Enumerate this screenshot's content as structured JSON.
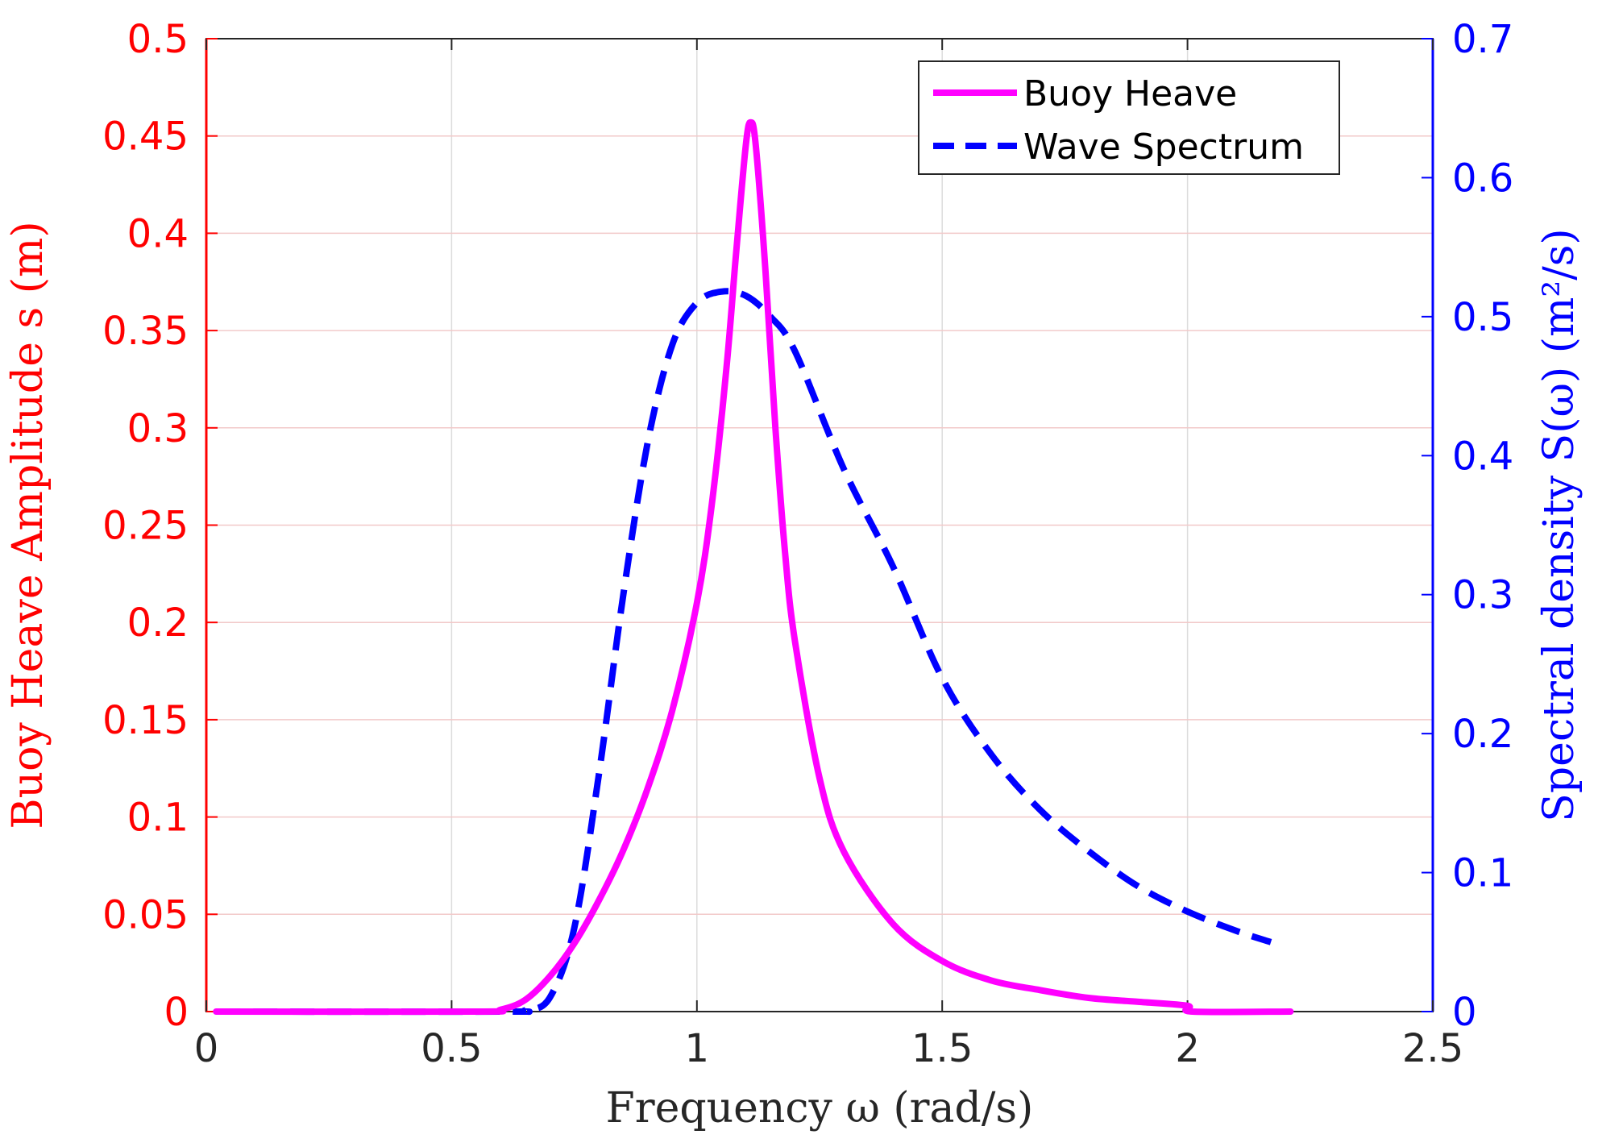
{
  "chart_data": {
    "type": "line",
    "title": "",
    "xlabel": "Frequency ω (rad/s)",
    "ylabel_left": "Buoy Heave Amplitude s (m)",
    "ylabel_right": "Spectral density S(ω) (m²/s)",
    "xlim": [
      0,
      2.5
    ],
    "ylim_left": [
      0,
      0.5
    ],
    "ylim_right": [
      0,
      0.7
    ],
    "grid": true,
    "legend_position": "top-right",
    "x_ticks": [
      "0",
      "0.5",
      "1",
      "1.5",
      "2",
      "2.5"
    ],
    "x_tick_values": [
      0,
      0.5,
      1,
      1.5,
      2,
      2.5
    ],
    "y_left_ticks": [
      "0",
      "0.05",
      "0.1",
      "0.15",
      "0.2",
      "0.25",
      "0.3",
      "0.35",
      "0.4",
      "0.45",
      "0.5"
    ],
    "y_left_tick_values": [
      0,
      0.05,
      0.1,
      0.15,
      0.2,
      0.25,
      0.3,
      0.35,
      0.4,
      0.45,
      0.5
    ],
    "y_right_ticks": [
      "0",
      "0.1",
      "0.2",
      "0.3",
      "0.4",
      "0.5",
      "0.6",
      "0.7"
    ],
    "y_right_tick_values": [
      0,
      0.1,
      0.2,
      0.3,
      0.4,
      0.5,
      0.6,
      0.7
    ],
    "colors": {
      "left_axis": "#ff0000",
      "right_axis": "#0000ff",
      "buoy": "#ff00ff",
      "spectrum": "#0000ff",
      "x_axis": "#262626"
    },
    "series": [
      {
        "name": "Buoy Heave",
        "axis": "left",
        "style": "solid",
        "x": [
          0.02,
          0.55,
          0.6,
          0.65,
          0.7,
          0.75,
          0.8,
          0.85,
          0.9,
          0.95,
          1.0,
          1.03,
          1.06,
          1.08,
          1.1,
          1.11,
          1.12,
          1.14,
          1.16,
          1.18,
          1.2,
          1.25,
          1.3,
          1.4,
          1.5,
          1.6,
          1.7,
          1.8,
          1.9,
          2.0,
          2.01,
          2.21
        ],
        "values": [
          0,
          0,
          0.001,
          0.006,
          0.018,
          0.035,
          0.057,
          0.083,
          0.115,
          0.155,
          0.21,
          0.26,
          0.33,
          0.39,
          0.446,
          0.457,
          0.445,
          0.38,
          0.3,
          0.235,
          0.19,
          0.12,
          0.082,
          0.045,
          0.026,
          0.016,
          0.011,
          0.007,
          0.005,
          0.003,
          0,
          0
        ]
      },
      {
        "name": "Wave Spectrum",
        "axis": "right",
        "style": "dashed",
        "x": [
          0.02,
          0.6,
          0.65,
          0.7,
          0.75,
          0.8,
          0.85,
          0.9,
          0.95,
          1.0,
          1.05,
          1.1,
          1.15,
          1.2,
          1.3,
          1.4,
          1.5,
          1.6,
          1.7,
          1.8,
          1.9,
          2.0,
          2.1,
          2.17
        ],
        "values": [
          0,
          0,
          0.001,
          0.01,
          0.06,
          0.17,
          0.3,
          0.41,
          0.48,
          0.51,
          0.518,
          0.515,
          0.5,
          0.475,
          0.39,
          0.32,
          0.24,
          0.185,
          0.145,
          0.115,
          0.09,
          0.072,
          0.058,
          0.05
        ]
      }
    ]
  }
}
